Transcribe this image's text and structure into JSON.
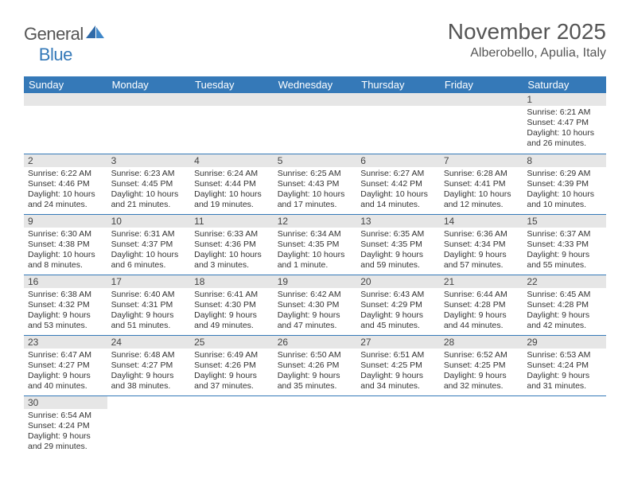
{
  "brand": {
    "part1": "General",
    "part2": "Blue"
  },
  "title": "November 2025",
  "location": "Alberobello, Apulia, Italy",
  "colors": {
    "header_bg": "#3579b8",
    "daynum_bg": "#e6e6e6",
    "row_border": "#3579b8",
    "page_bg": "#ffffff"
  },
  "day_headers": [
    "Sunday",
    "Monday",
    "Tuesday",
    "Wednesday",
    "Thursday",
    "Friday",
    "Saturday"
  ],
  "weeks": [
    [
      {
        "blank": true
      },
      {
        "blank": true
      },
      {
        "blank": true
      },
      {
        "blank": true
      },
      {
        "blank": true
      },
      {
        "blank": true
      },
      {
        "n": "1",
        "sunrise": "Sunrise: 6:21 AM",
        "sunset": "Sunset: 4:47 PM",
        "daylight": "Daylight: 10 hours and 26 minutes."
      }
    ],
    [
      {
        "n": "2",
        "sunrise": "Sunrise: 6:22 AM",
        "sunset": "Sunset: 4:46 PM",
        "daylight": "Daylight: 10 hours and 24 minutes."
      },
      {
        "n": "3",
        "sunrise": "Sunrise: 6:23 AM",
        "sunset": "Sunset: 4:45 PM",
        "daylight": "Daylight: 10 hours and 21 minutes."
      },
      {
        "n": "4",
        "sunrise": "Sunrise: 6:24 AM",
        "sunset": "Sunset: 4:44 PM",
        "daylight": "Daylight: 10 hours and 19 minutes."
      },
      {
        "n": "5",
        "sunrise": "Sunrise: 6:25 AM",
        "sunset": "Sunset: 4:43 PM",
        "daylight": "Daylight: 10 hours and 17 minutes."
      },
      {
        "n": "6",
        "sunrise": "Sunrise: 6:27 AM",
        "sunset": "Sunset: 4:42 PM",
        "daylight": "Daylight: 10 hours and 14 minutes."
      },
      {
        "n": "7",
        "sunrise": "Sunrise: 6:28 AM",
        "sunset": "Sunset: 4:41 PM",
        "daylight": "Daylight: 10 hours and 12 minutes."
      },
      {
        "n": "8",
        "sunrise": "Sunrise: 6:29 AM",
        "sunset": "Sunset: 4:39 PM",
        "daylight": "Daylight: 10 hours and 10 minutes."
      }
    ],
    [
      {
        "n": "9",
        "sunrise": "Sunrise: 6:30 AM",
        "sunset": "Sunset: 4:38 PM",
        "daylight": "Daylight: 10 hours and 8 minutes."
      },
      {
        "n": "10",
        "sunrise": "Sunrise: 6:31 AM",
        "sunset": "Sunset: 4:37 PM",
        "daylight": "Daylight: 10 hours and 6 minutes."
      },
      {
        "n": "11",
        "sunrise": "Sunrise: 6:33 AM",
        "sunset": "Sunset: 4:36 PM",
        "daylight": "Daylight: 10 hours and 3 minutes."
      },
      {
        "n": "12",
        "sunrise": "Sunrise: 6:34 AM",
        "sunset": "Sunset: 4:35 PM",
        "daylight": "Daylight: 10 hours and 1 minute."
      },
      {
        "n": "13",
        "sunrise": "Sunrise: 6:35 AM",
        "sunset": "Sunset: 4:35 PM",
        "daylight": "Daylight: 9 hours and 59 minutes."
      },
      {
        "n": "14",
        "sunrise": "Sunrise: 6:36 AM",
        "sunset": "Sunset: 4:34 PM",
        "daylight": "Daylight: 9 hours and 57 minutes."
      },
      {
        "n": "15",
        "sunrise": "Sunrise: 6:37 AM",
        "sunset": "Sunset: 4:33 PM",
        "daylight": "Daylight: 9 hours and 55 minutes."
      }
    ],
    [
      {
        "n": "16",
        "sunrise": "Sunrise: 6:38 AM",
        "sunset": "Sunset: 4:32 PM",
        "daylight": "Daylight: 9 hours and 53 minutes."
      },
      {
        "n": "17",
        "sunrise": "Sunrise: 6:40 AM",
        "sunset": "Sunset: 4:31 PM",
        "daylight": "Daylight: 9 hours and 51 minutes."
      },
      {
        "n": "18",
        "sunrise": "Sunrise: 6:41 AM",
        "sunset": "Sunset: 4:30 PM",
        "daylight": "Daylight: 9 hours and 49 minutes."
      },
      {
        "n": "19",
        "sunrise": "Sunrise: 6:42 AM",
        "sunset": "Sunset: 4:30 PM",
        "daylight": "Daylight: 9 hours and 47 minutes."
      },
      {
        "n": "20",
        "sunrise": "Sunrise: 6:43 AM",
        "sunset": "Sunset: 4:29 PM",
        "daylight": "Daylight: 9 hours and 45 minutes."
      },
      {
        "n": "21",
        "sunrise": "Sunrise: 6:44 AM",
        "sunset": "Sunset: 4:28 PM",
        "daylight": "Daylight: 9 hours and 44 minutes."
      },
      {
        "n": "22",
        "sunrise": "Sunrise: 6:45 AM",
        "sunset": "Sunset: 4:28 PM",
        "daylight": "Daylight: 9 hours and 42 minutes."
      }
    ],
    [
      {
        "n": "23",
        "sunrise": "Sunrise: 6:47 AM",
        "sunset": "Sunset: 4:27 PM",
        "daylight": "Daylight: 9 hours and 40 minutes."
      },
      {
        "n": "24",
        "sunrise": "Sunrise: 6:48 AM",
        "sunset": "Sunset: 4:27 PM",
        "daylight": "Daylight: 9 hours and 38 minutes."
      },
      {
        "n": "25",
        "sunrise": "Sunrise: 6:49 AM",
        "sunset": "Sunset: 4:26 PM",
        "daylight": "Daylight: 9 hours and 37 minutes."
      },
      {
        "n": "26",
        "sunrise": "Sunrise: 6:50 AM",
        "sunset": "Sunset: 4:26 PM",
        "daylight": "Daylight: 9 hours and 35 minutes."
      },
      {
        "n": "27",
        "sunrise": "Sunrise: 6:51 AM",
        "sunset": "Sunset: 4:25 PM",
        "daylight": "Daylight: 9 hours and 34 minutes."
      },
      {
        "n": "28",
        "sunrise": "Sunrise: 6:52 AM",
        "sunset": "Sunset: 4:25 PM",
        "daylight": "Daylight: 9 hours and 32 minutes."
      },
      {
        "n": "29",
        "sunrise": "Sunrise: 6:53 AM",
        "sunset": "Sunset: 4:24 PM",
        "daylight": "Daylight: 9 hours and 31 minutes."
      }
    ],
    [
      {
        "n": "30",
        "sunrise": "Sunrise: 6:54 AM",
        "sunset": "Sunset: 4:24 PM",
        "daylight": "Daylight: 9 hours and 29 minutes."
      },
      {
        "blank": true
      },
      {
        "blank": true
      },
      {
        "blank": true
      },
      {
        "blank": true
      },
      {
        "blank": true
      },
      {
        "blank": true
      }
    ]
  ]
}
